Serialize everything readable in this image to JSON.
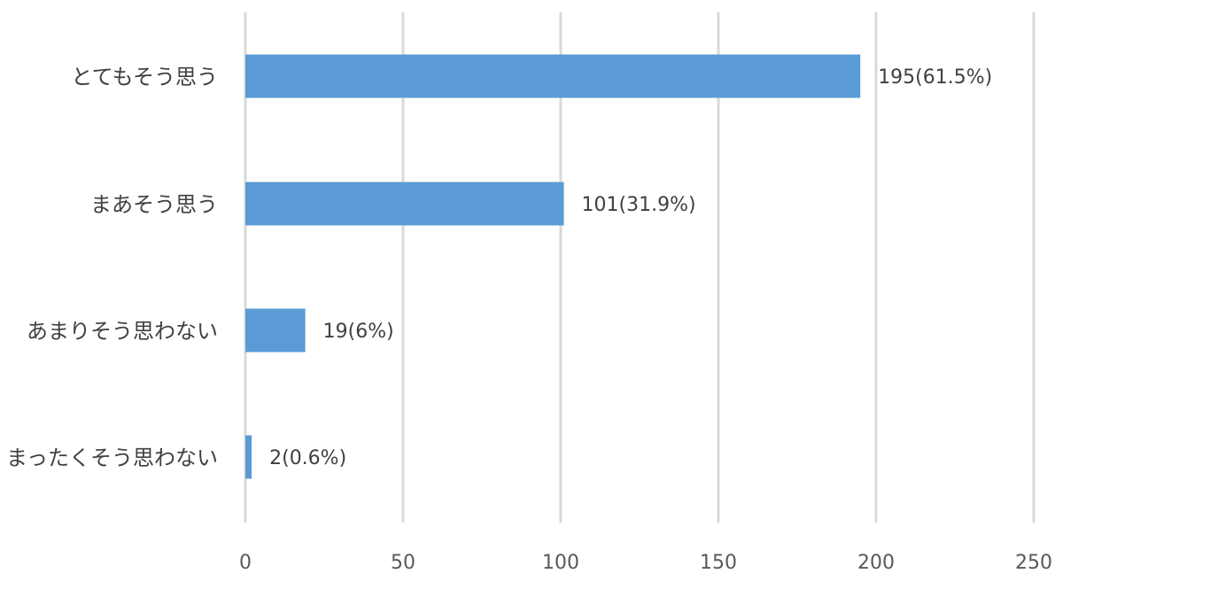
{
  "chart_data": {
    "type": "bar",
    "orientation": "horizontal",
    "categories": [
      "とてもそう思う",
      "まあそう思う",
      "あまりそう思わない",
      "まったくそう思わない"
    ],
    "values": [
      195,
      101,
      19,
      2
    ],
    "data_labels": [
      "195(61.5%)",
      "101(31.9%)",
      "19(6%)",
      "2(0.6%)"
    ],
    "x_ticks": [
      "0",
      "50",
      "100",
      "150",
      "200",
      "250"
    ],
    "xlim": [
      0,
      250
    ],
    "grid": true,
    "legend": "none",
    "bar_color": "#5b9bd5"
  }
}
